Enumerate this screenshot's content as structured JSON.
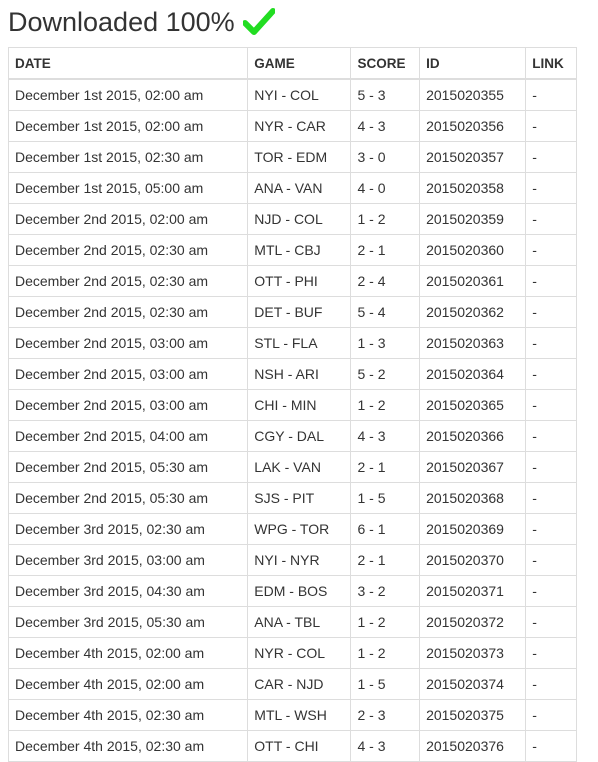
{
  "header": {
    "title": "Downloaded 100%",
    "icon": "check-icon",
    "icon_color": "#22dd22"
  },
  "table": {
    "columns": [
      "DATE",
      "GAME",
      "SCORE",
      "ID",
      "LINK"
    ],
    "rows": [
      {
        "date": "December 1st 2015, 02:00 am",
        "game": "NYI - COL",
        "score": "5 - 3",
        "id": "2015020355",
        "link": "-"
      },
      {
        "date": "December 1st 2015, 02:00 am",
        "game": "NYR - CAR",
        "score": "4 - 3",
        "id": "2015020356",
        "link": "-"
      },
      {
        "date": "December 1st 2015, 02:30 am",
        "game": "TOR - EDM",
        "score": "3 - 0",
        "id": "2015020357",
        "link": "-"
      },
      {
        "date": "December 1st 2015, 05:00 am",
        "game": "ANA - VAN",
        "score": "4 - 0",
        "id": "2015020358",
        "link": "-"
      },
      {
        "date": "December 2nd 2015, 02:00 am",
        "game": "NJD - COL",
        "score": "1 - 2",
        "id": "2015020359",
        "link": "-"
      },
      {
        "date": "December 2nd 2015, 02:30 am",
        "game": "MTL - CBJ",
        "score": "2 - 1",
        "id": "2015020360",
        "link": "-"
      },
      {
        "date": "December 2nd 2015, 02:30 am",
        "game": "OTT - PHI",
        "score": "2 - 4",
        "id": "2015020361",
        "link": "-"
      },
      {
        "date": "December 2nd 2015, 02:30 am",
        "game": "DET - BUF",
        "score": "5 - 4",
        "id": "2015020362",
        "link": "-"
      },
      {
        "date": "December 2nd 2015, 03:00 am",
        "game": "STL - FLA",
        "score": "1 - 3",
        "id": "2015020363",
        "link": "-"
      },
      {
        "date": "December 2nd 2015, 03:00 am",
        "game": "NSH - ARI",
        "score": "5 - 2",
        "id": "2015020364",
        "link": "-"
      },
      {
        "date": "December 2nd 2015, 03:00 am",
        "game": "CHI - MIN",
        "score": "1 - 2",
        "id": "2015020365",
        "link": "-"
      },
      {
        "date": "December 2nd 2015, 04:00 am",
        "game": "CGY - DAL",
        "score": "4 - 3",
        "id": "2015020366",
        "link": "-"
      },
      {
        "date": "December 2nd 2015, 05:30 am",
        "game": "LAK - VAN",
        "score": "2 - 1",
        "id": "2015020367",
        "link": "-"
      },
      {
        "date": "December 2nd 2015, 05:30 am",
        "game": "SJS - PIT",
        "score": "1 - 5",
        "id": "2015020368",
        "link": "-"
      },
      {
        "date": "December 3rd 2015, 02:30 am",
        "game": "WPG - TOR",
        "score": "6 - 1",
        "id": "2015020369",
        "link": "-"
      },
      {
        "date": "December 3rd 2015, 03:00 am",
        "game": "NYI - NYR",
        "score": "2 - 1",
        "id": "2015020370",
        "link": "-"
      },
      {
        "date": "December 3rd 2015, 04:30 am",
        "game": "EDM - BOS",
        "score": "3 - 2",
        "id": "2015020371",
        "link": "-"
      },
      {
        "date": "December 3rd 2015, 05:30 am",
        "game": "ANA - TBL",
        "score": "1 - 2",
        "id": "2015020372",
        "link": "-"
      },
      {
        "date": "December 4th 2015, 02:00 am",
        "game": "NYR - COL",
        "score": "1 - 2",
        "id": "2015020373",
        "link": "-"
      },
      {
        "date": "December 4th 2015, 02:00 am",
        "game": "CAR - NJD",
        "score": "1 - 5",
        "id": "2015020374",
        "link": "-"
      },
      {
        "date": "December 4th 2015, 02:30 am",
        "game": "MTL - WSH",
        "score": "2 - 3",
        "id": "2015020375",
        "link": "-"
      },
      {
        "date": "December 4th 2015, 02:30 am",
        "game": "OTT - CHI",
        "score": "4 - 3",
        "id": "2015020376",
        "link": "-"
      }
    ]
  }
}
